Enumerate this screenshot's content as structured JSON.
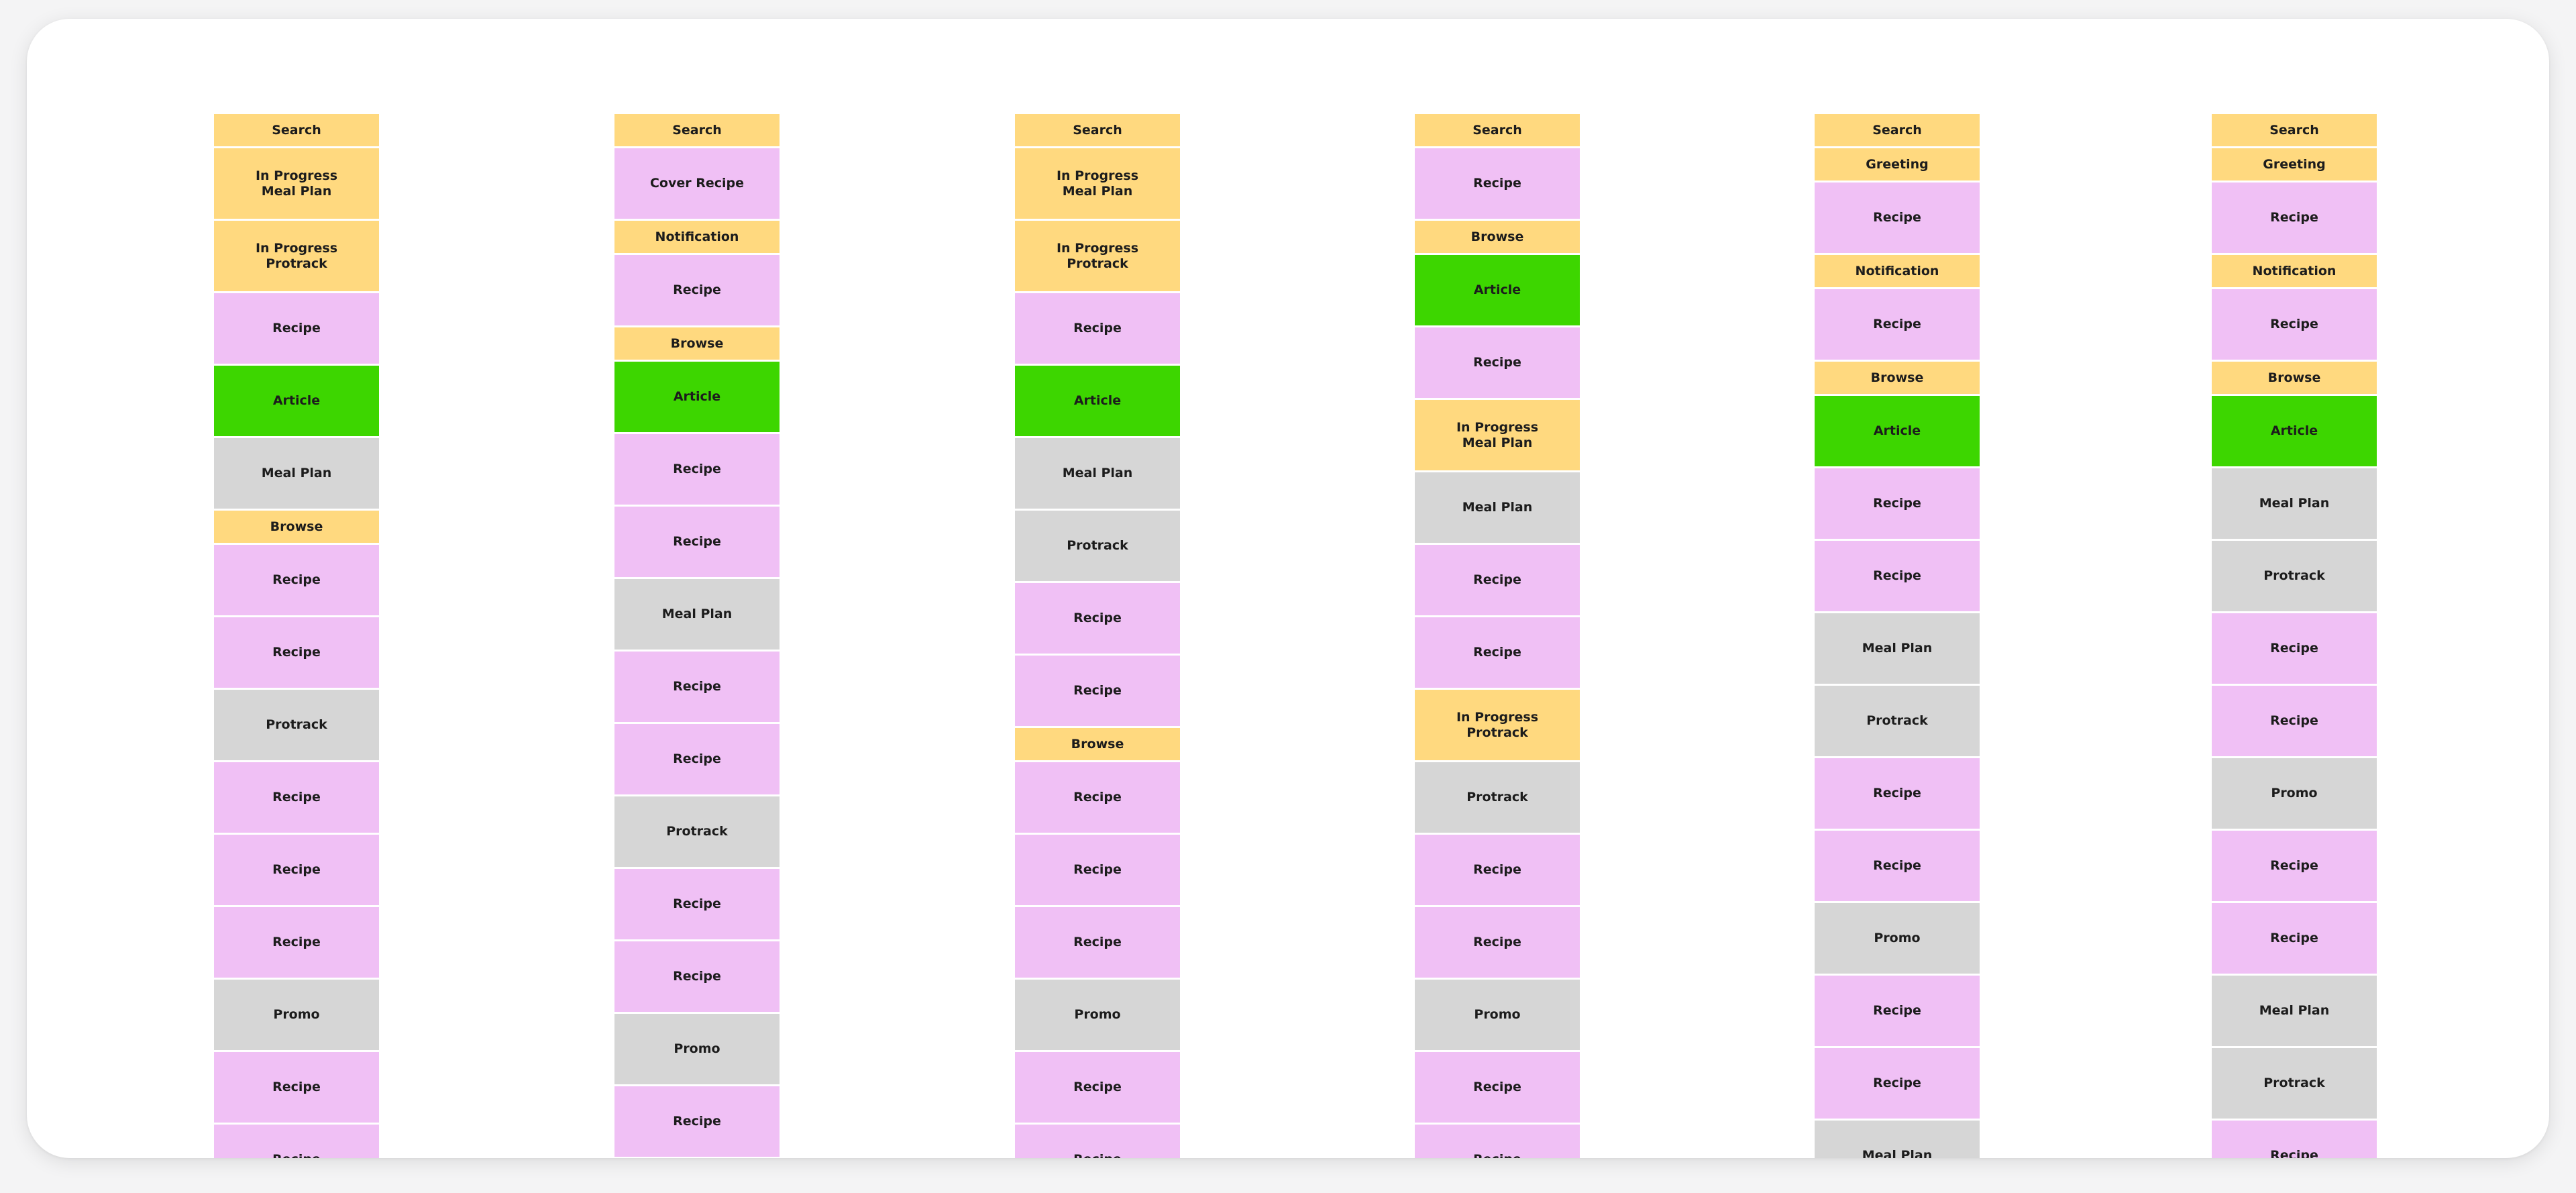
{
  "colors": {
    "yellow": "#ffd97f",
    "pink": "#f0c0f5",
    "green": "#3dd600",
    "gray": "#d6d6d6",
    "board": "#ffffff"
  },
  "columns": [
    {
      "blocks": [
        {
          "label": "Search",
          "color": "yellow",
          "size": "small"
        },
        {
          "label": "In Progress\nMeal Plan",
          "color": "yellow",
          "size": "large"
        },
        {
          "label": "In Progress\nProtrack",
          "color": "yellow",
          "size": "large"
        },
        {
          "label": "Recipe",
          "color": "pink",
          "size": "large"
        },
        {
          "label": "Article",
          "color": "green",
          "size": "large"
        },
        {
          "label": "Meal Plan",
          "color": "gray",
          "size": "large"
        },
        {
          "label": "Browse",
          "color": "yellow",
          "size": "small"
        },
        {
          "label": "Recipe",
          "color": "pink",
          "size": "large"
        },
        {
          "label": "Recipe",
          "color": "pink",
          "size": "large"
        },
        {
          "label": "Protrack",
          "color": "gray",
          "size": "large"
        },
        {
          "label": "Recipe",
          "color": "pink",
          "size": "large"
        },
        {
          "label": "Recipe",
          "color": "pink",
          "size": "large"
        },
        {
          "label": "Recipe",
          "color": "pink",
          "size": "large"
        },
        {
          "label": "Promo",
          "color": "gray",
          "size": "large"
        },
        {
          "label": "Recipe",
          "color": "pink",
          "size": "large"
        },
        {
          "label": "Recipe",
          "color": "pink",
          "size": "large"
        }
      ]
    },
    {
      "blocks": [
        {
          "label": "Search",
          "color": "yellow",
          "size": "small"
        },
        {
          "label": "Cover Recipe",
          "color": "pink",
          "size": "large"
        },
        {
          "label": "Notification",
          "color": "yellow",
          "size": "small"
        },
        {
          "label": "Recipe",
          "color": "pink",
          "size": "large"
        },
        {
          "label": "Browse",
          "color": "yellow",
          "size": "small"
        },
        {
          "label": "Article",
          "color": "green",
          "size": "large"
        },
        {
          "label": "Recipe",
          "color": "pink",
          "size": "large"
        },
        {
          "label": "Recipe",
          "color": "pink",
          "size": "large"
        },
        {
          "label": "Meal Plan",
          "color": "gray",
          "size": "large"
        },
        {
          "label": "Recipe",
          "color": "pink",
          "size": "large"
        },
        {
          "label": "Recipe",
          "color": "pink",
          "size": "large"
        },
        {
          "label": "Protrack",
          "color": "gray",
          "size": "large"
        },
        {
          "label": "Recipe",
          "color": "pink",
          "size": "large"
        },
        {
          "label": "Recipe",
          "color": "pink",
          "size": "large"
        },
        {
          "label": "Promo",
          "color": "gray",
          "size": "large"
        },
        {
          "label": "Recipe",
          "color": "pink",
          "size": "large"
        }
      ]
    },
    {
      "blocks": [
        {
          "label": "Search",
          "color": "yellow",
          "size": "small"
        },
        {
          "label": "In Progress\nMeal Plan",
          "color": "yellow",
          "size": "large"
        },
        {
          "label": "In Progress\nProtrack",
          "color": "yellow",
          "size": "large"
        },
        {
          "label": "Recipe",
          "color": "pink",
          "size": "large"
        },
        {
          "label": "Article",
          "color": "green",
          "size": "large"
        },
        {
          "label": "Meal Plan",
          "color": "gray",
          "size": "large"
        },
        {
          "label": "Protrack",
          "color": "gray",
          "size": "large"
        },
        {
          "label": "Recipe",
          "color": "pink",
          "size": "large"
        },
        {
          "label": "Recipe",
          "color": "pink",
          "size": "large"
        },
        {
          "label": "Browse",
          "color": "yellow",
          "size": "small"
        },
        {
          "label": "Recipe",
          "color": "pink",
          "size": "large"
        },
        {
          "label": "Recipe",
          "color": "pink",
          "size": "large"
        },
        {
          "label": "Recipe",
          "color": "pink",
          "size": "large"
        },
        {
          "label": "Promo",
          "color": "gray",
          "size": "large"
        },
        {
          "label": "Recipe",
          "color": "pink",
          "size": "large"
        },
        {
          "label": "Recipe",
          "color": "pink",
          "size": "large"
        }
      ]
    },
    {
      "blocks": [
        {
          "label": "Search",
          "color": "yellow",
          "size": "small"
        },
        {
          "label": "Recipe",
          "color": "pink",
          "size": "large"
        },
        {
          "label": "Browse",
          "color": "yellow",
          "size": "small"
        },
        {
          "label": "Article",
          "color": "green",
          "size": "large"
        },
        {
          "label": "Recipe",
          "color": "pink",
          "size": "large"
        },
        {
          "label": "In Progress\nMeal Plan",
          "color": "yellow",
          "size": "large"
        },
        {
          "label": "Meal Plan",
          "color": "gray",
          "size": "large"
        },
        {
          "label": "Recipe",
          "color": "pink",
          "size": "large"
        },
        {
          "label": "Recipe",
          "color": "pink",
          "size": "large"
        },
        {
          "label": "In Progress\nProtrack",
          "color": "yellow",
          "size": "large"
        },
        {
          "label": "Protrack",
          "color": "gray",
          "size": "large"
        },
        {
          "label": "Recipe",
          "color": "pink",
          "size": "large"
        },
        {
          "label": "Recipe",
          "color": "pink",
          "size": "large"
        },
        {
          "label": "Promo",
          "color": "gray",
          "size": "large"
        },
        {
          "label": "Recipe",
          "color": "pink",
          "size": "large"
        },
        {
          "label": "Recipe",
          "color": "pink",
          "size": "large"
        }
      ]
    },
    {
      "blocks": [
        {
          "label": "Search",
          "color": "yellow",
          "size": "small"
        },
        {
          "label": "Greeting",
          "color": "yellow",
          "size": "small"
        },
        {
          "label": "Recipe",
          "color": "pink",
          "size": "large"
        },
        {
          "label": "Notification",
          "color": "yellow",
          "size": "small"
        },
        {
          "label": "Recipe",
          "color": "pink",
          "size": "large"
        },
        {
          "label": "Browse",
          "color": "yellow",
          "size": "small"
        },
        {
          "label": "Article",
          "color": "green",
          "size": "large"
        },
        {
          "label": "Recipe",
          "color": "pink",
          "size": "large"
        },
        {
          "label": "Recipe",
          "color": "pink",
          "size": "large"
        },
        {
          "label": "Meal Plan",
          "color": "gray",
          "size": "large"
        },
        {
          "label": "Protrack",
          "color": "gray",
          "size": "large"
        },
        {
          "label": "Recipe",
          "color": "pink",
          "size": "large"
        },
        {
          "label": "Recipe",
          "color": "pink",
          "size": "large"
        },
        {
          "label": "Promo",
          "color": "gray",
          "size": "large"
        },
        {
          "label": "Recipe",
          "color": "pink",
          "size": "large"
        },
        {
          "label": "Recipe",
          "color": "pink",
          "size": "large"
        },
        {
          "label": "Meal Plan",
          "color": "gray",
          "size": "large"
        }
      ]
    },
    {
      "blocks": [
        {
          "label": "Search",
          "color": "yellow",
          "size": "small"
        },
        {
          "label": "Greeting",
          "color": "yellow",
          "size": "small"
        },
        {
          "label": "Recipe",
          "color": "pink",
          "size": "large"
        },
        {
          "label": "Notification",
          "color": "yellow",
          "size": "small"
        },
        {
          "label": "Recipe",
          "color": "pink",
          "size": "large"
        },
        {
          "label": "Browse",
          "color": "yellow",
          "size": "small"
        },
        {
          "label": "Article",
          "color": "green",
          "size": "large"
        },
        {
          "label": "Meal Plan",
          "color": "gray",
          "size": "large"
        },
        {
          "label": "Protrack",
          "color": "gray",
          "size": "large"
        },
        {
          "label": "Recipe",
          "color": "pink",
          "size": "large"
        },
        {
          "label": "Recipe",
          "color": "pink",
          "size": "large"
        },
        {
          "label": "Promo",
          "color": "gray",
          "size": "large"
        },
        {
          "label": "Recipe",
          "color": "pink",
          "size": "large"
        },
        {
          "label": "Recipe",
          "color": "pink",
          "size": "large"
        },
        {
          "label": "Meal Plan",
          "color": "gray",
          "size": "large"
        },
        {
          "label": "Protrack",
          "color": "gray",
          "size": "large"
        },
        {
          "label": "Recipe",
          "color": "pink",
          "size": "large"
        }
      ]
    }
  ]
}
